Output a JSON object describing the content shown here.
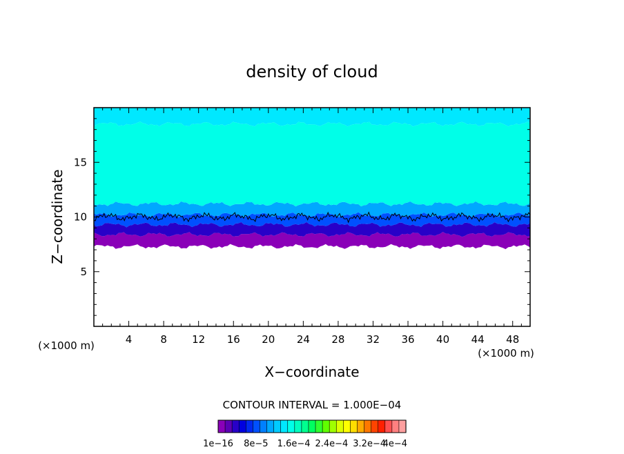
{
  "chart_data": {
    "type": "heatmap",
    "title": "density of cloud",
    "xlabel": "X−coordinate",
    "ylabel": "Z−coordinate",
    "x_unit": "(×1000 m)",
    "y_unit": "(×1000 m)",
    "xlim": [
      0,
      50
    ],
    "ylim": [
      0,
      20
    ],
    "x_ticks": [
      4,
      8,
      12,
      16,
      20,
      24,
      28,
      32,
      36,
      40,
      44,
      48
    ],
    "x_tick_labels": [
      "4",
      "8",
      "12",
      "16",
      "20",
      "24",
      "28",
      "32",
      "36",
      "40",
      "44",
      "48"
    ],
    "y_ticks": [
      5,
      10,
      15
    ],
    "y_tick_labels": [
      "5",
      "10",
      "15"
    ],
    "contour_interval_text": "CONTOUR INTERVAL = 1.000E−04",
    "colorbar": {
      "colors": [
        "#8a00b8",
        "#5c00b4",
        "#2800c8",
        "#0000e0",
        "#0028f0",
        "#0050ff",
        "#0080ff",
        "#00a8ff",
        "#00ccff",
        "#00e8ff",
        "#00ffe8",
        "#00ffc0",
        "#00ff90",
        "#00ff60",
        "#30ff30",
        "#60ff00",
        "#a0ff00",
        "#ddff00",
        "#ffff00",
        "#ffdd00",
        "#ffaa00",
        "#ff7800",
        "#ff4400",
        "#ff2000",
        "#ff5050",
        "#ff8080",
        "#ffa0a0"
      ],
      "labels": [
        "1e−16",
        "8e−5",
        "1.6e−4",
        "2.4e−4",
        "3.2e−4",
        "4e−4"
      ]
    },
    "layers": [
      {
        "z_bottom": 7.3,
        "z_top": 8.4,
        "color": "#8a00b8"
      },
      {
        "z_bottom": 8.4,
        "z_top": 9.3,
        "color": "#2800c8"
      },
      {
        "z_bottom": 9.3,
        "z_top": 10.2,
        "color": "#0050ff"
      },
      {
        "z_bottom": 10.2,
        "z_top": 11.2,
        "color": "#00a8ff"
      },
      {
        "z_bottom": 11.2,
        "z_top": 18.5,
        "color": "#00ffe8"
      },
      {
        "z_bottom": 18.5,
        "z_top": 20,
        "color": "#00e8ff"
      }
    ],
    "contour_level_z": 10.0
  }
}
